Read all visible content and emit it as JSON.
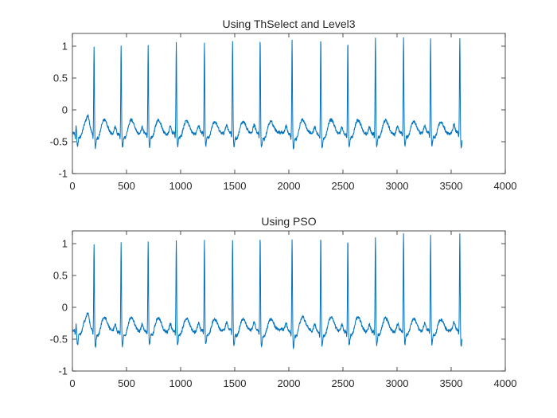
{
  "chart_data": [
    {
      "type": "line",
      "title": "Using ThSelect and Level3",
      "xlabel": "",
      "ylabel": "",
      "xlim": [
        0,
        4000
      ],
      "ylim": [
        -1,
        1.2
      ],
      "xticks": [
        0,
        500,
        1000,
        1500,
        2000,
        2500,
        3000,
        3500,
        4000
      ],
      "xtick_labels": [
        "0",
        "500",
        "1000",
        "1500",
        "2000",
        "2500",
        "3000",
        "3500",
        "4000"
      ],
      "yticks": [
        -1,
        -0.5,
        0,
        0.5,
        1
      ],
      "ytick_labels": [
        "-1",
        "-0.5",
        "0",
        "0.5",
        "1"
      ],
      "grid": false,
      "line_color": "#0072bd",
      "series": [
        {
          "beat_times": [
            35,
            200,
            450,
            700,
            960,
            1220,
            1480,
            1735,
            2030,
            2295,
            2545,
            2800,
            3060,
            3310,
            3580
          ],
          "beat_peaks": [
            -0.25,
            1.05,
            1.05,
            1.05,
            1.06,
            1.07,
            1.1,
            1.14,
            1.14,
            1.17,
            1.13,
            1.15,
            1.18,
            1.13,
            1.16
          ],
          "baseline_level": -0.37,
          "s_trough": -0.56,
          "t_wave_peak": -0.15,
          "x_end": 3600,
          "end_value": -0.5
        }
      ]
    },
    {
      "type": "line",
      "title": "Using PSO",
      "xlabel": "",
      "ylabel": "",
      "xlim": [
        0,
        4000
      ],
      "ylim": [
        -1,
        1.2
      ],
      "xticks": [
        0,
        500,
        1000,
        1500,
        2000,
        2500,
        3000,
        3500,
        4000
      ],
      "xtick_labels": [
        "0",
        "500",
        "1000",
        "1500",
        "2000",
        "2500",
        "3000",
        "3500",
        "4000"
      ],
      "yticks": [
        -1,
        -0.5,
        0,
        0.5,
        1
      ],
      "ytick_labels": [
        "-1",
        "-0.5",
        "0",
        "0.5",
        "1"
      ],
      "grid": false,
      "line_color": "#0072bd",
      "series": [
        {
          "beat_times": [
            35,
            200,
            450,
            700,
            960,
            1220,
            1480,
            1735,
            2030,
            2295,
            2545,
            2800,
            3060,
            3310,
            3580
          ],
          "beat_peaks": [
            -0.25,
            1.05,
            1.05,
            1.05,
            1.06,
            1.07,
            1.1,
            1.14,
            1.14,
            1.17,
            1.13,
            1.15,
            1.18,
            1.13,
            1.16
          ],
          "baseline_level": -0.37,
          "s_trough": -0.58,
          "t_wave_peak": -0.15,
          "x_end": 3600,
          "end_value": -0.5
        }
      ]
    }
  ]
}
